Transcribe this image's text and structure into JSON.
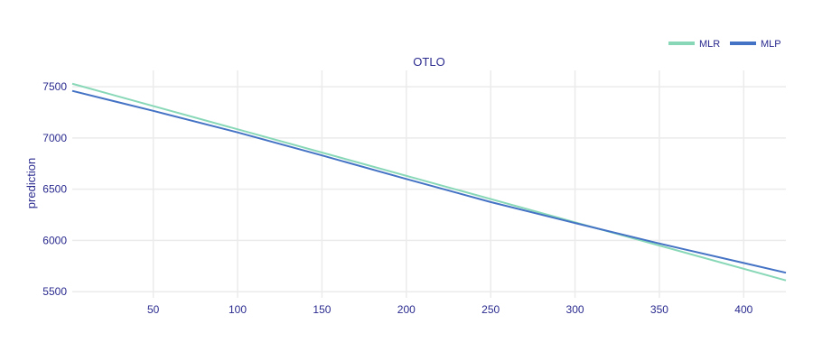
{
  "chart_data": {
    "type": "line",
    "title": "OTLO",
    "xlabel": "",
    "ylabel": "prediction",
    "xlim": [
      2,
      425
    ],
    "ylim": [
      5440,
      7660
    ],
    "x_ticks": [
      50,
      100,
      150,
      200,
      250,
      300,
      350,
      400
    ],
    "y_ticks": [
      5500,
      6000,
      6500,
      7000,
      7500
    ],
    "grid": true,
    "legend_position": "top-right",
    "series": [
      {
        "name": "MLR",
        "color": "#88d8b8",
        "x": [
          2,
          425
        ],
        "y": [
          7530,
          5610
        ]
      },
      {
        "name": "MLP",
        "color": "#4472c4",
        "x": [
          2,
          50,
          100,
          150,
          200,
          250,
          300,
          350,
          400,
          425
        ],
        "y": [
          7460,
          7265,
          7055,
          6830,
          6600,
          6375,
          6170,
          5970,
          5780,
          5685
        ]
      }
    ]
  }
}
